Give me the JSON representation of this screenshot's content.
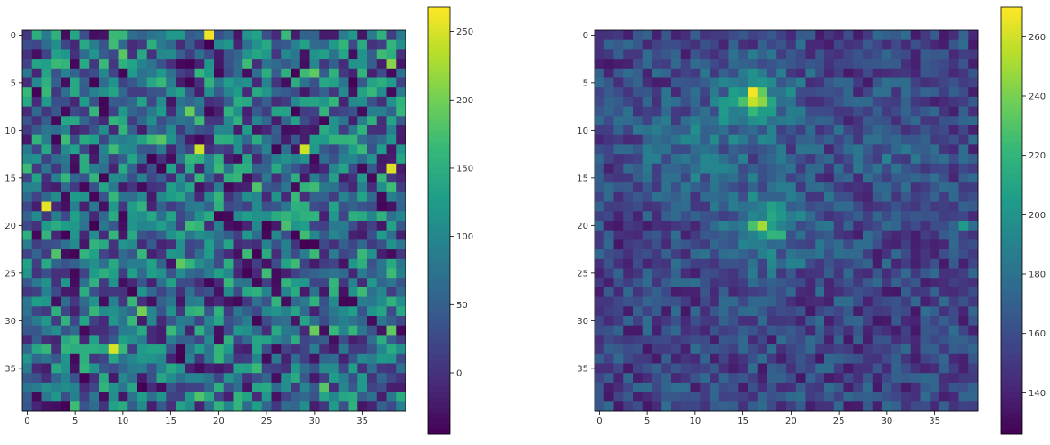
{
  "colormap": "viridis",
  "chart_data": [
    {
      "type": "heatmap",
      "rows": 40,
      "cols": 40,
      "x_ticks": [
        0,
        5,
        10,
        15,
        20,
        25,
        30,
        35
      ],
      "y_ticks": [
        0,
        5,
        10,
        15,
        20,
        25,
        30,
        35
      ],
      "colorbar": {
        "min": -45,
        "max": 268,
        "ticks": [
          0,
          50,
          100,
          150,
          200,
          250
        ]
      },
      "background": {
        "kind": "uniform-noise",
        "low": -45,
        "high": 170,
        "seed": 7
      },
      "hotspots": [
        {
          "row": 0,
          "col": 19,
          "value": 262
        },
        {
          "row": 12,
          "col": 18,
          "value": 245
        },
        {
          "row": 12,
          "col": 29,
          "value": 245
        },
        {
          "row": 14,
          "col": 38,
          "value": 250
        },
        {
          "row": 18,
          "col": 2,
          "value": 255
        },
        {
          "row": 33,
          "col": 9,
          "value": 250
        },
        {
          "row": 3,
          "col": 38,
          "value": 210
        },
        {
          "row": 8,
          "col": 17,
          "value": 195
        },
        {
          "row": 4,
          "col": 30,
          "value": 190
        },
        {
          "row": 2,
          "col": 10,
          "value": 185
        },
        {
          "row": 24,
          "col": 16,
          "value": 190
        },
        {
          "row": 29,
          "col": 12,
          "value": 200
        },
        {
          "row": 31,
          "col": 30,
          "value": 195
        },
        {
          "row": 31,
          "col": 38,
          "value": 190
        },
        {
          "row": 11,
          "col": 14,
          "value": 185
        },
        {
          "row": 16,
          "col": 24,
          "value": 180
        },
        {
          "row": 23,
          "col": 3,
          "value": 180
        },
        {
          "row": 37,
          "col": 31,
          "value": 185
        },
        {
          "row": 38,
          "col": 18,
          "value": 180
        },
        {
          "row": 20,
          "col": 27,
          "value": 175
        }
      ]
    },
    {
      "type": "heatmap",
      "rows": 40,
      "cols": 40,
      "x_ticks": [
        0,
        5,
        10,
        15,
        20,
        25,
        30,
        35
      ],
      "y_ticks": [
        0,
        5,
        10,
        15,
        20,
        25,
        30,
        35
      ],
      "colorbar": {
        "min": 126,
        "max": 270,
        "ticks": [
          140,
          160,
          180,
          200,
          220,
          240,
          260
        ]
      },
      "background": {
        "kind": "uniform-noise",
        "low": 135,
        "high": 178,
        "seed": 11
      },
      "blobs": [
        {
          "row": 7,
          "col": 16.5,
          "radius": 3,
          "peak": 42
        },
        {
          "row": 12,
          "col": 9,
          "radius": 3.5,
          "peak": 22
        },
        {
          "row": 20,
          "col": 18,
          "radius": 3.5,
          "peak": 32
        },
        {
          "row": 12,
          "col": 30,
          "radius": 3,
          "peak": 15
        }
      ],
      "hotspots": [
        {
          "row": 6,
          "col": 16,
          "value": 268
        },
        {
          "row": 7,
          "col": 16,
          "value": 258
        },
        {
          "row": 7,
          "col": 17,
          "value": 245
        },
        {
          "row": 6,
          "col": 17,
          "value": 235
        },
        {
          "row": 7,
          "col": 15,
          "value": 228
        },
        {
          "row": 8,
          "col": 16,
          "value": 222
        },
        {
          "row": 20,
          "col": 17,
          "value": 250
        },
        {
          "row": 20,
          "col": 16,
          "value": 228
        },
        {
          "row": 21,
          "col": 18,
          "value": 220
        },
        {
          "row": 21,
          "col": 19,
          "value": 218
        },
        {
          "row": 19,
          "col": 18,
          "value": 212
        },
        {
          "row": 18,
          "col": 18,
          "value": 208
        },
        {
          "row": 20,
          "col": 38,
          "value": 205
        }
      ]
    }
  ]
}
